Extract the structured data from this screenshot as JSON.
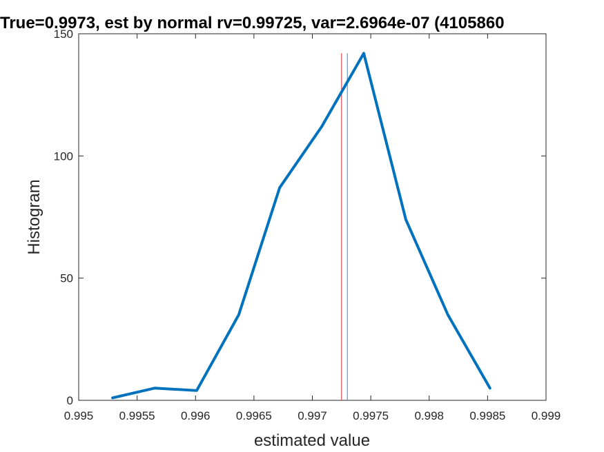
{
  "chart_data": {
    "type": "line",
    "title": "True=0.9973, est by normal rv=0.99725, var=2.6964e-07 (4105860",
    "xlabel": "estimated value",
    "ylabel": "Histogram",
    "xlim": [
      0.995,
      0.999
    ],
    "ylim": [
      0,
      150
    ],
    "xticks": [
      "0.995",
      "0.9955",
      "0.996",
      "0.9965",
      "0.997",
      "0.9975",
      "0.998",
      "0.9985",
      "0.999"
    ],
    "yticks": [
      "0",
      "50",
      "100",
      "150"
    ],
    "grid": false,
    "series": [
      {
        "color": "#0072BD",
        "x": [
          0.99529,
          0.99565,
          0.99601,
          0.99637,
          0.99672,
          0.99708,
          0.99744,
          0.9978,
          0.99816,
          0.99852
        ],
        "y": [
          1,
          5,
          4,
          35,
          87,
          112,
          142,
          74,
          35,
          5
        ]
      }
    ],
    "vertical_lines": [
      {
        "x": 0.99725,
        "color": "#e8474b"
      },
      {
        "x": 0.9973,
        "color": "#4d9be6"
      }
    ]
  }
}
